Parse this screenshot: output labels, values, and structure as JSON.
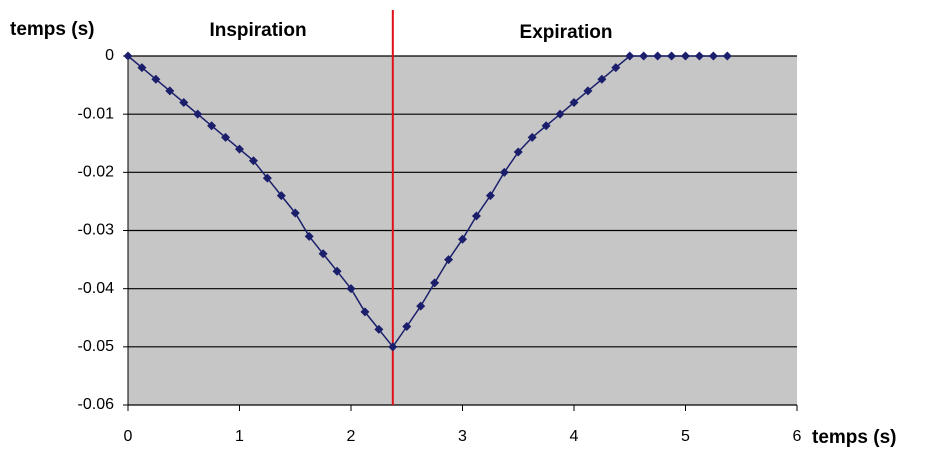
{
  "chart_data": {
    "type": "line",
    "y_label": "temps (s)",
    "x_label": "temps (s)",
    "annotations": [
      "Inspiration",
      "Expiration"
    ],
    "divider_x": 2.375,
    "divider_color": "#e0101a",
    "xlim": [
      0,
      6
    ],
    "xticks": [
      0,
      1,
      2,
      3,
      4,
      5,
      6
    ],
    "ylim": [
      -0.06,
      0
    ],
    "yticks": [
      0,
      -0.01,
      -0.02,
      -0.03,
      -0.04,
      -0.05,
      -0.06
    ],
    "grid": true,
    "series": [
      {
        "color": "#1b1f6b",
        "x": [
          0,
          0.125,
          0.25,
          0.375,
          0.5,
          0.625,
          0.75,
          0.875,
          1,
          1.125,
          1.25,
          1.375,
          1.5,
          1.625,
          1.75,
          1.875,
          2,
          2.125,
          2.25,
          2.375,
          2.5,
          2.625,
          2.75,
          2.875,
          3,
          3.125,
          3.25,
          3.375,
          3.5,
          3.625,
          3.75,
          3.875,
          4,
          4.125,
          4.25,
          4.375,
          4.5,
          4.625,
          4.75,
          4.875,
          5,
          5.125,
          5.25,
          5.375
        ],
        "values": [
          0,
          -0.002,
          -0.004,
          -0.006,
          -0.008,
          -0.01,
          -0.012,
          -0.014,
          -0.016,
          -0.018,
          -0.021,
          -0.024,
          -0.027,
          -0.031,
          -0.034,
          -0.037,
          -0.04,
          -0.044,
          -0.047,
          -0.05,
          -0.0465,
          -0.043,
          -0.039,
          -0.035,
          -0.0315,
          -0.0275,
          -0.024,
          -0.02,
          -0.0165,
          -0.014,
          -0.012,
          -0.01,
          -0.008,
          -0.006,
          -0.004,
          -0.002,
          0,
          0,
          0,
          0,
          0,
          0,
          0,
          0
        ]
      }
    ]
  }
}
